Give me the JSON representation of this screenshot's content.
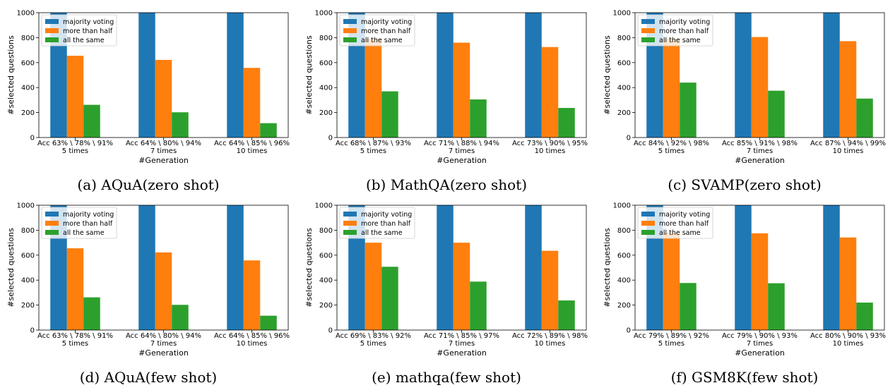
{
  "colors": {
    "majority": "#1f77b4",
    "half": "#ff7f0e",
    "same": "#2ca02c"
  },
  "chart_data": [
    {
      "type": "bar",
      "caption": "(a) AQuA(zero shot)",
      "categories": [
        "Acc 63% \\ 78% \\ 91%\n5 times",
        "Acc 64% \\ 80% \\ 94%\n7 times",
        "Acc 64% \\ 85% \\ 96%\n10 times"
      ],
      "series": [
        {
          "name": "majority voting",
          "values": [
            1000,
            1000,
            1000
          ]
        },
        {
          "name": "more than half",
          "values": [
            655,
            622,
            558
          ]
        },
        {
          "name": "all the same",
          "values": [
            262,
            202,
            115
          ]
        }
      ],
      "xlabel": "#Generation",
      "ylabel": "#selected questions",
      "ylim": [
        0,
        1000
      ],
      "yticks": [
        "0",
        "200",
        "400",
        "600",
        "800",
        "1000"
      ],
      "legend": "top-left"
    },
    {
      "type": "bar",
      "caption": "(b) MathQA(zero shot)",
      "categories": [
        "Acc 68% \\ 87% \\ 93%\n5 times",
        "Acc 71% \\ 88% \\ 94%\n7 times",
        "Acc 73% \\ 90% \\ 95%\n10 times"
      ],
      "series": [
        {
          "name": "majority voting",
          "values": [
            1000,
            1000,
            1000
          ]
        },
        {
          "name": "more than half",
          "values": [
            790,
            760,
            725
          ]
        },
        {
          "name": "all the same",
          "values": [
            370,
            305,
            237
          ]
        }
      ],
      "xlabel": "#Generation",
      "ylabel": "#selected questions",
      "ylim": [
        0,
        1000
      ],
      "yticks": [
        "0",
        "200",
        "400",
        "600",
        "800",
        "1000"
      ],
      "legend": "top-left"
    },
    {
      "type": "bar",
      "caption": "(c) SVAMP(zero shot)",
      "categories": [
        "Acc 84% \\ 92% \\ 98%\n5 times",
        "Acc 85% \\ 91% \\ 98%\n7 times",
        "Acc 87% \\ 94% \\ 99%\n10 times"
      ],
      "series": [
        {
          "name": "majority voting",
          "values": [
            1000,
            1000,
            1000
          ]
        },
        {
          "name": "more than half",
          "values": [
            790,
            805,
            772
          ]
        },
        {
          "name": "all the same",
          "values": [
            440,
            375,
            312
          ]
        }
      ],
      "xlabel": "#Generation",
      "ylabel": "#selected questions",
      "ylim": [
        0,
        1000
      ],
      "yticks": [
        "0",
        "200",
        "400",
        "600",
        "800",
        "1000"
      ],
      "legend": "top-left"
    },
    {
      "type": "bar",
      "caption": "(d) AQuA(few shot)",
      "categories": [
        "Acc 63% \\ 78% \\ 91%\n5 times",
        "Acc 64% \\ 80% \\ 94%\n7 times",
        "Acc 64% \\ 85% \\ 96%\n10 times"
      ],
      "series": [
        {
          "name": "majority voting",
          "values": [
            1000,
            1000,
            1000
          ]
        },
        {
          "name": "more than half",
          "values": [
            655,
            622,
            558
          ]
        },
        {
          "name": "all the same",
          "values": [
            262,
            202,
            115
          ]
        }
      ],
      "xlabel": "#Generation",
      "ylabel": "#selected questions",
      "ylim": [
        0,
        1000
      ],
      "yticks": [
        "0",
        "200",
        "400",
        "600",
        "800",
        "1000"
      ],
      "legend": "top-left"
    },
    {
      "type": "bar",
      "caption": "(e) mathqa(few shot)",
      "categories": [
        "Acc 69% \\ 83% \\ 92%\n5 times",
        "Acc 71% \\ 85% \\ 97%\n7 times",
        "Acc 72% \\ 89% \\ 98%\n10 times"
      ],
      "series": [
        {
          "name": "majority voting",
          "values": [
            1000,
            1000,
            1000
          ]
        },
        {
          "name": "more than half",
          "values": [
            700,
            700,
            635
          ]
        },
        {
          "name": "all the same",
          "values": [
            507,
            388,
            237
          ]
        }
      ],
      "xlabel": "#Generation",
      "ylabel": "#selected questions",
      "ylim": [
        0,
        1000
      ],
      "yticks": [
        "0",
        "200",
        "400",
        "600",
        "800",
        "1000"
      ],
      "legend": "top-left"
    },
    {
      "type": "bar",
      "caption": "(f) GSM8K(few shot)",
      "categories": [
        "Acc 79% \\ 89% \\ 92%\n5 times",
        "Acc 79% \\ 90% \\ 93%\n7 times",
        "Acc 80% \\ 90% \\ 93%\n10 times"
      ],
      "series": [
        {
          "name": "majority voting",
          "values": [
            1000,
            1000,
            1000
          ]
        },
        {
          "name": "more than half",
          "values": [
            780,
            775,
            742
          ]
        },
        {
          "name": "all the same",
          "values": [
            377,
            375,
            220
          ]
        }
      ],
      "xlabel": "#Generation",
      "ylabel": "#selected questions",
      "ylim": [
        0,
        1000
      ],
      "yticks": [
        "0",
        "200",
        "400",
        "600",
        "800",
        "1000"
      ],
      "legend": "top-left"
    }
  ]
}
